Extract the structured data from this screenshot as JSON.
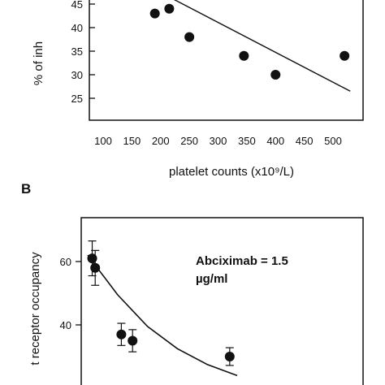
{
  "chart_data": [
    {
      "panel": "",
      "type": "scatter",
      "title": "",
      "xlabel": "platelet counts (x10⁹/L)",
      "ylabel": "% of inh",
      "xlim": [
        100,
        530
      ],
      "ylim": [
        22,
        48
      ],
      "x_ticks": [
        100,
        150,
        200,
        250,
        300,
        350,
        400,
        450,
        500
      ],
      "y_ticks": [
        25,
        30,
        35,
        40,
        45
      ],
      "x": [
        190,
        215,
        250,
        345,
        400,
        520
      ],
      "y": [
        43,
        44,
        38,
        34,
        30,
        34
      ],
      "fit_line": {
        "x": [
          215,
          530
        ],
        "y": [
          46.5,
          26.5
        ]
      }
    },
    {
      "panel": "B",
      "type": "scatter",
      "title": "",
      "xlabel": "",
      "ylabel": "t receptor occupancy",
      "ylim": [
        25,
        72
      ],
      "y_ticks": [
        40,
        60
      ],
      "annotation": [
        "Abciximab = 1.5",
        "µg/ml"
      ],
      "points": [
        {
          "x": 0.6,
          "y": 61,
          "err": 5.5
        },
        {
          "x": 1.0,
          "y": 58,
          "err": 5.5
        },
        {
          "x": 4.5,
          "y": 37,
          "err": 3.5
        },
        {
          "x": 6.0,
          "y": 35,
          "err": 3.5
        },
        {
          "x": 19.0,
          "y": 30,
          "err": 2.8
        }
      ],
      "fit_curve": {
        "x": [
          0,
          4,
          8,
          12,
          16,
          20
        ],
        "y": [
          62,
          49.5,
          39.5,
          32.5,
          27.5,
          24
        ]
      }
    }
  ]
}
